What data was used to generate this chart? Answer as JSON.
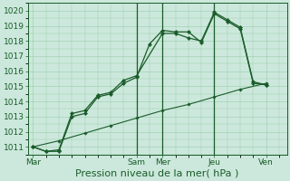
{
  "title": "",
  "xlabel": "Pression niveau de la mer( hPa )",
  "ylabel": "",
  "bg_color": "#cce8dc",
  "line_color": "#1a5c2a",
  "grid_color": "#99ccaa",
  "ylim": [
    1010.5,
    1020.5
  ],
  "yticks": [
    1011,
    1012,
    1013,
    1014,
    1015,
    1016,
    1017,
    1018,
    1019,
    1020
  ],
  "xtick_labels": [
    "Mar",
    "Sam",
    "Mer",
    "Jeu",
    "Ven"
  ],
  "xtick_positions": [
    0,
    4,
    5,
    7,
    9
  ],
  "vline_positions": [
    4,
    5,
    7
  ],
  "line1_x": [
    0,
    0.5,
    1,
    1.5,
    2,
    2.5,
    3,
    3.5,
    4,
    4.5,
    5,
    5.5,
    6,
    6.5,
    7,
    7.5,
    8,
    8.5,
    9
  ],
  "line1_y": [
    1011.0,
    1010.7,
    1010.7,
    1013.0,
    1013.2,
    1014.3,
    1014.5,
    1015.2,
    1015.6,
    1017.8,
    1018.7,
    1018.6,
    1018.6,
    1017.9,
    1019.8,
    1019.3,
    1018.8,
    1015.2,
    1015.1
  ],
  "line2_x": [
    0,
    0.5,
    1,
    1.5,
    2,
    2.5,
    3,
    3.5,
    4,
    5,
    5.5,
    6,
    6.5,
    7,
    7.5,
    8,
    8.5,
    9
  ],
  "line2_y": [
    1011.0,
    1010.7,
    1010.8,
    1013.2,
    1013.4,
    1014.4,
    1014.6,
    1015.4,
    1015.7,
    1018.5,
    1018.5,
    1018.2,
    1018.0,
    1019.9,
    1019.4,
    1018.9,
    1015.3,
    1015.1
  ],
  "line3_x": [
    0,
    1,
    2,
    3,
    4,
    5,
    6,
    7,
    8,
    9
  ],
  "line3_y": [
    1011.0,
    1011.4,
    1011.9,
    1012.4,
    1012.9,
    1013.4,
    1013.8,
    1014.3,
    1014.8,
    1015.2
  ],
  "xlim": [
    -0.2,
    9.8
  ],
  "xlabel_fontsize": 8,
  "tick_fontsize": 6.5
}
